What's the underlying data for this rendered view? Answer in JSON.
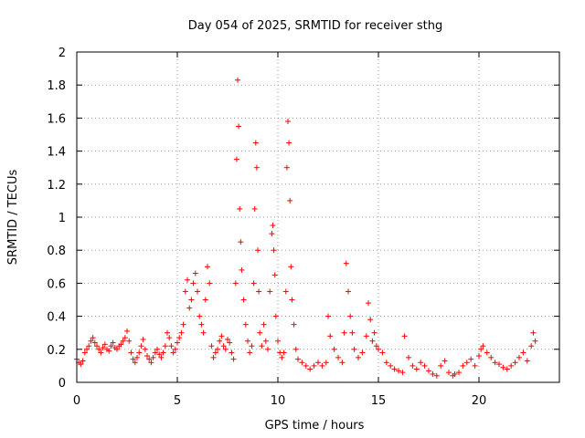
{
  "chart_data": {
    "type": "scatter",
    "title": "Day 054 of 2025, SRMTID for receiver sthg",
    "xlabel": "GPS time / hours",
    "ylabel": "SRMTID / TECUs",
    "xlim": [
      0,
      24
    ],
    "ylim": [
      0,
      2
    ],
    "grid": true,
    "marker": "+",
    "series_color": "#ff0000",
    "xticks": [
      0,
      5,
      10,
      15,
      20
    ],
    "xtick_labels": [
      "0",
      "5",
      "10",
      "15",
      "20"
    ],
    "yticks": [
      0,
      0.2,
      0.4,
      0.6,
      0.8,
      1,
      1.2,
      1.4,
      1.6,
      1.8,
      2
    ],
    "ytick_labels": [
      "0",
      "0.2",
      "0.4",
      "0.6",
      "0.8",
      "1",
      "1.2",
      "1.4",
      "1.6",
      "1.8",
      "2"
    ],
    "series": [
      {
        "name": "SRMTID",
        "x": [
          0.0,
          0.1,
          0.2,
          0.3,
          0.4,
          0.5,
          0.6,
          0.7,
          0.8,
          0.9,
          1.0,
          1.1,
          1.2,
          1.3,
          1.4,
          1.5,
          1.6,
          1.7,
          1.8,
          1.9,
          2.0,
          2.1,
          2.2,
          2.3,
          2.4,
          2.5,
          2.6,
          2.7,
          2.8,
          2.9,
          3.0,
          3.1,
          3.2,
          3.3,
          3.4,
          3.5,
          3.6,
          3.7,
          3.8,
          3.9,
          4.0,
          4.1,
          4.2,
          4.3,
          4.4,
          4.5,
          4.6,
          4.7,
          4.8,
          4.9,
          5.0,
          5.1,
          5.2,
          5.3,
          5.4,
          5.5,
          5.6,
          5.7,
          5.8,
          5.9,
          6.0,
          6.1,
          6.2,
          6.3,
          6.4,
          6.5,
          6.6,
          6.7,
          6.8,
          6.9,
          7.0,
          7.1,
          7.2,
          7.3,
          7.4,
          7.5,
          7.6,
          7.7,
          7.8,
          7.9,
          7.95,
          8.0,
          8.05,
          8.1,
          8.15,
          8.2,
          8.3,
          8.4,
          8.5,
          8.6,
          8.7,
          8.8,
          8.85,
          8.9,
          8.95,
          9.0,
          9.05,
          9.1,
          9.2,
          9.3,
          9.4,
          9.5,
          9.6,
          9.7,
          9.75,
          9.8,
          9.85,
          9.9,
          10.0,
          10.1,
          10.2,
          10.3,
          10.4,
          10.45,
          10.5,
          10.55,
          10.6,
          10.65,
          10.7,
          10.8,
          10.9,
          11.0,
          11.2,
          11.4,
          11.6,
          11.8,
          12.0,
          12.2,
          12.4,
          12.5,
          12.6,
          12.8,
          13.0,
          13.2,
          13.3,
          13.4,
          13.5,
          13.6,
          13.7,
          13.8,
          14.0,
          14.2,
          14.4,
          14.5,
          14.6,
          14.7,
          14.8,
          14.9,
          15.0,
          15.2,
          15.4,
          15.6,
          15.8,
          16.0,
          16.2,
          16.3,
          16.5,
          16.7,
          16.9,
          17.1,
          17.3,
          17.5,
          17.7,
          17.9,
          18.1,
          18.3,
          18.5,
          18.7,
          18.8,
          19.0,
          19.2,
          19.4,
          19.6,
          19.8,
          20.0,
          20.1,
          20.2,
          20.4,
          20.6,
          20.8,
          21.0,
          21.2,
          21.4,
          21.6,
          21.8,
          22.0,
          22.2,
          22.4,
          22.6,
          22.7,
          22.8
        ],
        "y": [
          0.14,
          0.12,
          0.11,
          0.13,
          0.18,
          0.2,
          0.22,
          0.25,
          0.27,
          0.24,
          0.22,
          0.2,
          0.18,
          0.21,
          0.23,
          0.2,
          0.19,
          0.22,
          0.24,
          0.21,
          0.2,
          0.22,
          0.23,
          0.25,
          0.27,
          0.31,
          0.25,
          0.18,
          0.14,
          0.12,
          0.15,
          0.18,
          0.22,
          0.26,
          0.2,
          0.16,
          0.14,
          0.12,
          0.15,
          0.18,
          0.2,
          0.17,
          0.15,
          0.18,
          0.22,
          0.3,
          0.27,
          0.22,
          0.18,
          0.2,
          0.24,
          0.27,
          0.3,
          0.35,
          0.55,
          0.62,
          0.45,
          0.5,
          0.6,
          0.66,
          0.55,
          0.4,
          0.35,
          0.3,
          0.5,
          0.7,
          0.6,
          0.22,
          0.15,
          0.18,
          0.2,
          0.25,
          0.28,
          0.22,
          0.2,
          0.26,
          0.24,
          0.18,
          0.14,
          0.6,
          1.35,
          1.83,
          1.55,
          1.05,
          0.85,
          0.68,
          0.5,
          0.35,
          0.25,
          0.18,
          0.22,
          0.6,
          1.05,
          1.45,
          1.3,
          0.8,
          0.55,
          0.3,
          0.22,
          0.35,
          0.25,
          0.2,
          0.55,
          0.9,
          0.95,
          0.8,
          0.65,
          0.4,
          0.25,
          0.18,
          0.15,
          0.18,
          0.55,
          1.3,
          1.58,
          1.45,
          1.1,
          0.7,
          0.5,
          0.35,
          0.2,
          0.14,
          0.12,
          0.1,
          0.08,
          0.1,
          0.12,
          0.1,
          0.12,
          0.4,
          0.28,
          0.2,
          0.15,
          0.12,
          0.3,
          0.72,
          0.55,
          0.4,
          0.3,
          0.2,
          0.15,
          0.18,
          0.28,
          0.48,
          0.38,
          0.25,
          0.3,
          0.22,
          0.2,
          0.18,
          0.12,
          0.1,
          0.08,
          0.07,
          0.06,
          0.28,
          0.15,
          0.1,
          0.08,
          0.12,
          0.1,
          0.07,
          0.05,
          0.04,
          0.1,
          0.13,
          0.06,
          0.04,
          0.05,
          0.06,
          0.1,
          0.12,
          0.14,
          0.1,
          0.16,
          0.2,
          0.22,
          0.18,
          0.15,
          0.12,
          0.11,
          0.09,
          0.08,
          0.1,
          0.12,
          0.15,
          0.18,
          0.13,
          0.22,
          0.3,
          0.25
        ]
      }
    ]
  }
}
